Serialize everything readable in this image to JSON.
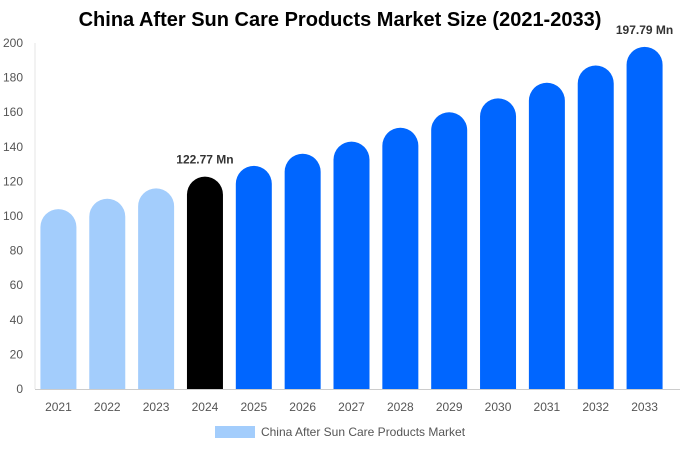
{
  "chart_data": {
    "type": "bar",
    "title": "China After Sun Care Products Market Size (2021-2033)",
    "categories": [
      "2021",
      "2022",
      "2023",
      "2024",
      "2025",
      "2026",
      "2027",
      "2028",
      "2029",
      "2030",
      "2031",
      "2032",
      "2033"
    ],
    "series": [
      {
        "name": "China After Sun Care Products Market",
        "values": [
          104,
          110,
          116,
          122.77,
          129,
          136,
          143,
          151,
          160,
          168,
          177,
          187,
          197.79
        ]
      }
    ],
    "ylim": [
      0,
      200
    ],
    "yticks": [
      0,
      20,
      40,
      60,
      80,
      100,
      120,
      140,
      160,
      180,
      200
    ],
    "data_labels": [
      {
        "category": "2024",
        "text": "122.77 Mn"
      },
      {
        "category": "2033",
        "text": "197.79 Mn"
      }
    ],
    "colors": {
      "historical": "#a3cdfc",
      "current": "#000000",
      "forecast": "#0066ff"
    },
    "legend": "bottom",
    "grid": false
  }
}
